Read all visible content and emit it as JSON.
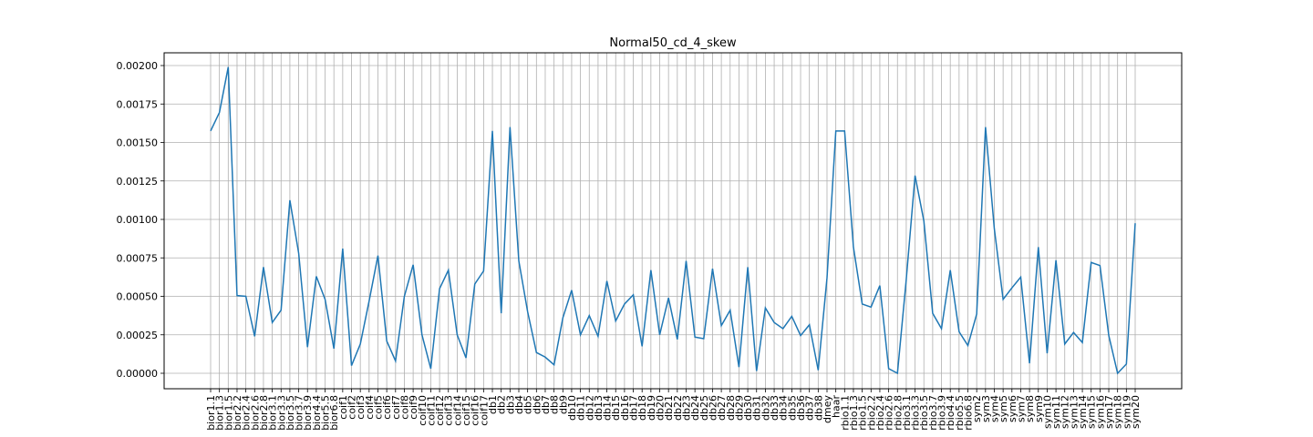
{
  "chart_data": {
    "type": "line",
    "title": "Normal50_cd_4_skew",
    "xlabel": "",
    "ylabel": "",
    "ylim": [
      -0.0001,
      0.002
    ],
    "yticks": [
      0.0,
      0.00025,
      0.0005,
      0.00075,
      0.001,
      0.00125,
      0.0015,
      0.00175,
      0.002
    ],
    "ytick_labels": [
      "0.00000",
      "0.00025",
      "0.00050",
      "0.00075",
      "0.00100",
      "0.00125",
      "0.00150",
      "0.00175",
      "0.00200"
    ],
    "grid": true,
    "line_color": "#1f77b4",
    "categories": [
      "bior1.1",
      "bior1.3",
      "bior1.5",
      "bior2.2",
      "bior2.4",
      "bior2.6",
      "bior2.8",
      "bior3.1",
      "bior3.3",
      "bior3.5",
      "bior3.7",
      "bior3.9",
      "bior4.4",
      "bior5.5",
      "bior6.8",
      "coif1",
      "coif2",
      "coif3",
      "coif4",
      "coif5",
      "coif6",
      "coif7",
      "coif8",
      "coif9",
      "coif10",
      "coif11",
      "coif12",
      "coif13",
      "coif14",
      "coif15",
      "coif16",
      "coif17",
      "db1",
      "db2",
      "db3",
      "db4",
      "db5",
      "db6",
      "db7",
      "db8",
      "db9",
      "db10",
      "db11",
      "db12",
      "db13",
      "db14",
      "db15",
      "db16",
      "db17",
      "db18",
      "db19",
      "db20",
      "db21",
      "db22",
      "db23",
      "db24",
      "db25",
      "db26",
      "db27",
      "db28",
      "db29",
      "db30",
      "db31",
      "db32",
      "db33",
      "db34",
      "db35",
      "db36",
      "db37",
      "db38",
      "dmey",
      "haar",
      "rbio1.1",
      "rbio1.3",
      "rbio1.5",
      "rbio2.2",
      "rbio2.4",
      "rbio2.6",
      "rbio2.8",
      "rbio3.1",
      "rbio3.3",
      "rbio3.5",
      "rbio3.7",
      "rbio3.9",
      "rbio4.4",
      "rbio5.5",
      "rbio6.8",
      "sym2",
      "sym3",
      "sym4",
      "sym5",
      "sym6",
      "sym7",
      "sym8",
      "sym9",
      "sym10",
      "sym11",
      "sym12",
      "sym13",
      "sym14",
      "sym15",
      "sym16",
      "sym17",
      "sym18",
      "sym19",
      "sym20"
    ],
    "values": [
      0.001575,
      0.001695,
      0.00199,
      0.000505,
      0.0005,
      0.00024,
      0.00069,
      0.00033,
      0.00041,
      0.001125,
      0.00078,
      0.00017,
      0.00063,
      0.00048,
      0.00016,
      0.00081,
      5e-05,
      0.00019,
      0.00047,
      0.000765,
      0.00021,
      8e-05,
      0.0005,
      0.000705,
      0.00025,
      3e-05,
      0.00055,
      0.00067,
      0.00025,
      0.0001,
      0.00058,
      0.000665,
      0.001575,
      0.00039,
      0.0016,
      0.00073,
      0.0004,
      0.000135,
      0.000105,
      5.5e-05,
      0.00036,
      0.00054,
      0.00025,
      0.000375,
      0.00024,
      0.0006,
      0.00034,
      0.00045,
      0.00051,
      0.000175,
      0.00067,
      0.00025,
      0.00049,
      0.00022,
      0.00073,
      0.000235,
      0.000225,
      0.00068,
      0.00031,
      0.00041,
      4e-05,
      0.00069,
      1.5e-05,
      0.000425,
      0.00033,
      0.00029,
      0.00037,
      0.000245,
      0.000315,
      2e-05,
      0.00062,
      0.001575,
      0.001575,
      0.00082,
      0.00045,
      0.00043,
      0.00057,
      3e-05,
      0.0,
      0.00061,
      0.001285,
      0.00099,
      0.00039,
      0.00029,
      0.00067,
      0.00027,
      0.00018,
      0.000385,
      0.0016,
      0.00094,
      0.00048,
      0.000555,
      0.000625,
      6.5e-05,
      0.00082,
      0.00013,
      0.000735,
      0.00019,
      0.000265,
      0.0002,
      0.00072,
      0.0007,
      0.000245,
      0.0,
      6e-05,
      0.000975
    ]
  }
}
